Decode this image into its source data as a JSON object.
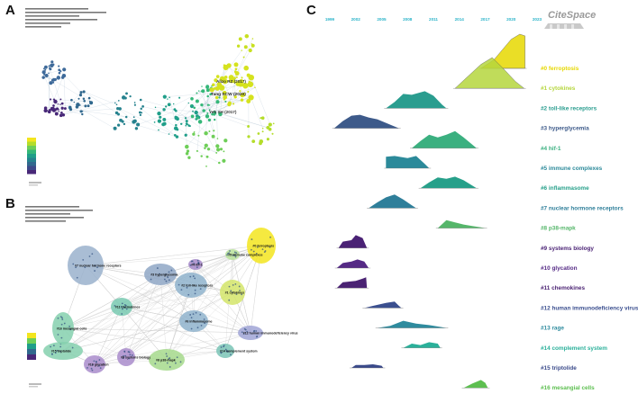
{
  "panels": {
    "a": {
      "letter": "A",
      "node_labels": [
        "Alizo RZ (2017)",
        "Tang SCW (2020)",
        "Yeh SH (2017)"
      ]
    },
    "b": {
      "letter": "B",
      "cluster_labels": [
        "#0 ferroptosis",
        "#1 cytokines",
        "#2 toll-like receptors",
        "#3 hyperglycemia",
        "#4 hif-1",
        "#5 immune complexes",
        "#6 inflammasome",
        "#7 nuclear hormone receptors",
        "#8 p38-mapk",
        "#9 systems biology",
        "#10 glycation",
        "#11 chemokines",
        "#12 human immunodeficiency virus",
        "#14 complement system",
        "#15 triptolide",
        "#16 mesangial cells"
      ]
    },
    "c": {
      "letter": "C",
      "logo_text": "CiteSpace"
    }
  },
  "chart_data": {
    "type": "area",
    "description_free": true,
    "x": [
      "1999",
      "2002",
      "2005",
      "2008",
      "2011",
      "2014",
      "2017",
      "2020",
      "2023"
    ],
    "xlim": [
      1999,
      2023
    ],
    "series": [
      {
        "name": "#0 ferroptosis",
        "color": "#e6d800",
        "points": [
          [
            2016.5,
            0
          ],
          [
            2018.0,
            0.25
          ],
          [
            2019.0,
            0.55
          ],
          [
            2020.0,
            0.85
          ],
          [
            2021.0,
            1.0
          ],
          [
            2021.6,
            0.95
          ],
          [
            2021.6,
            0
          ]
        ]
      },
      {
        "name": "#1 cytokines",
        "color": "#b5d63d",
        "points": [
          [
            2013.5,
            0
          ],
          [
            2015.0,
            0.35
          ],
          [
            2016.5,
            0.7
          ],
          [
            2017.8,
            0.9
          ],
          [
            2019.0,
            0.6
          ],
          [
            2020.5,
            0.2
          ],
          [
            2021.5,
            0
          ]
        ]
      },
      {
        "name": "#2 toll-like receptors",
        "color": "#2a9d8f",
        "points": [
          [
            2005.5,
            0
          ],
          [
            2006.5,
            0.35
          ],
          [
            2007.5,
            0.8
          ],
          [
            2008.5,
            0.75
          ],
          [
            2010.0,
            0.95
          ],
          [
            2011.0,
            0.7
          ],
          [
            2012.0,
            0.2
          ],
          [
            2012.5,
            0
          ]
        ]
      },
      {
        "name": "#3 hyperglycemia",
        "color": "#3d5a8a",
        "points": [
          [
            1999.5,
            0
          ],
          [
            2000.5,
            0.4
          ],
          [
            2001.5,
            0.7
          ],
          [
            2002.5,
            0.75
          ],
          [
            2003.5,
            0.6
          ],
          [
            2004.5,
            0.5
          ],
          [
            2005.5,
            0.3
          ],
          [
            2007.0,
            0
          ]
        ]
      },
      {
        "name": "#4 hif-1",
        "color": "#3bb080",
        "points": [
          [
            2008.5,
            0
          ],
          [
            2009.5,
            0.4
          ],
          [
            2010.5,
            0.75
          ],
          [
            2011.5,
            0.6
          ],
          [
            2012.5,
            0.75
          ],
          [
            2013.5,
            0.95
          ],
          [
            2014.5,
            0.6
          ],
          [
            2016.0,
            0
          ]
        ]
      },
      {
        "name": "#5 immune complexes",
        "color": "#2c8a9a",
        "points": [
          [
            2005.5,
            0
          ],
          [
            2005.5,
            0.8
          ],
          [
            2006.5,
            0.85
          ],
          [
            2008.0,
            0.7
          ],
          [
            2009.0,
            0.85
          ],
          [
            2010.0,
            0.3
          ],
          [
            2010.5,
            0
          ]
        ]
      },
      {
        "name": "#6 inflammasome",
        "color": "#27a08a",
        "points": [
          [
            2009.5,
            0
          ],
          [
            2010.5,
            0.4
          ],
          [
            2011.5,
            0.75
          ],
          [
            2012.5,
            0.65
          ],
          [
            2013.5,
            0.8
          ],
          [
            2014.5,
            0.55
          ],
          [
            2016.0,
            0
          ]
        ]
      },
      {
        "name": "#7 nuclear hormone receptors",
        "color": "#2f7f9a",
        "points": [
          [
            2003.5,
            0
          ],
          [
            2004.5,
            0.4
          ],
          [
            2005.5,
            0.75
          ],
          [
            2006.5,
            0.95
          ],
          [
            2007.5,
            0.6
          ],
          [
            2008.5,
            0.2
          ],
          [
            2009.0,
            0
          ]
        ]
      },
      {
        "name": "#8 p38-mapk",
        "color": "#55b66a",
        "points": [
          [
            2011.5,
            0
          ],
          [
            2012.5,
            0.55
          ],
          [
            2013.5,
            0.4
          ],
          [
            2014.5,
            0.25
          ],
          [
            2015.5,
            0.15
          ],
          [
            2016.5,
            0.05
          ],
          [
            2017.0,
            0
          ]
        ]
      },
      {
        "name": "#9 systems biology",
        "color": "#4a2275",
        "points": [
          [
            2000.0,
            0
          ],
          [
            2000.5,
            0.45
          ],
          [
            2001.5,
            0.55
          ],
          [
            2002.0,
            0.9
          ],
          [
            2002.8,
            0.7
          ],
          [
            2003.3,
            0
          ]
        ]
      },
      {
        "name": "#10 glycation",
        "color": "#552a85",
        "points": [
          [
            1999.8,
            0
          ],
          [
            2000.5,
            0.35
          ],
          [
            2001.5,
            0.45
          ],
          [
            2002.2,
            0.6
          ],
          [
            2003.0,
            0.45
          ],
          [
            2003.5,
            0
          ]
        ]
      },
      {
        "name": "#11 chemokines",
        "color": "#4b2373",
        "points": [
          [
            1999.8,
            0
          ],
          [
            2000.5,
            0.4
          ],
          [
            2002.0,
            0.5
          ],
          [
            2002.8,
            0.65
          ],
          [
            2003.2,
            0.75
          ],
          [
            2003.3,
            0
          ]
        ]
      },
      {
        "name": "#12 human immunodeficiency virus",
        "color": "#3b4f8f",
        "points": [
          [
            2003.0,
            0
          ],
          [
            2004.0,
            0.15
          ],
          [
            2005.5,
            0.35
          ],
          [
            2006.5,
            0.45
          ],
          [
            2007.0,
            0.15
          ],
          [
            2007.3,
            0
          ]
        ]
      },
      {
        "name": "#13 rage",
        "color": "#2e8b9e",
        "points": [
          [
            2004.5,
            0
          ],
          [
            2006.0,
            0.15
          ],
          [
            2007.5,
            0.5
          ],
          [
            2009.0,
            0.3
          ],
          [
            2010.5,
            0.2
          ],
          [
            2012.0,
            0.05
          ],
          [
            2012.5,
            0
          ]
        ]
      },
      {
        "name": "#14 complement system",
        "color": "#2ab09a",
        "points": [
          [
            2007.5,
            0
          ],
          [
            2008.5,
            0.3
          ],
          [
            2009.5,
            0.2
          ],
          [
            2010.5,
            0.4
          ],
          [
            2011.5,
            0.3
          ],
          [
            2011.8,
            0
          ]
        ]
      },
      {
        "name": "#15 triptolide",
        "color": "#3a4a8a",
        "points": [
          [
            2001.5,
            0
          ],
          [
            2002.0,
            0.2
          ],
          [
            2003.0,
            0.2
          ],
          [
            2004.0,
            0.25
          ],
          [
            2005.0,
            0.15
          ],
          [
            2005.2,
            0
          ]
        ]
      },
      {
        "name": "#16 mesangial cells",
        "color": "#5dbf50",
        "points": [
          [
            2014.5,
            0
          ],
          [
            2015.5,
            0.3
          ],
          [
            2016.5,
            0.55
          ],
          [
            2017.0,
            0.35
          ],
          [
            2017.3,
            0
          ]
        ]
      }
    ],
    "grid": false,
    "legend": "labels at right of each band"
  }
}
